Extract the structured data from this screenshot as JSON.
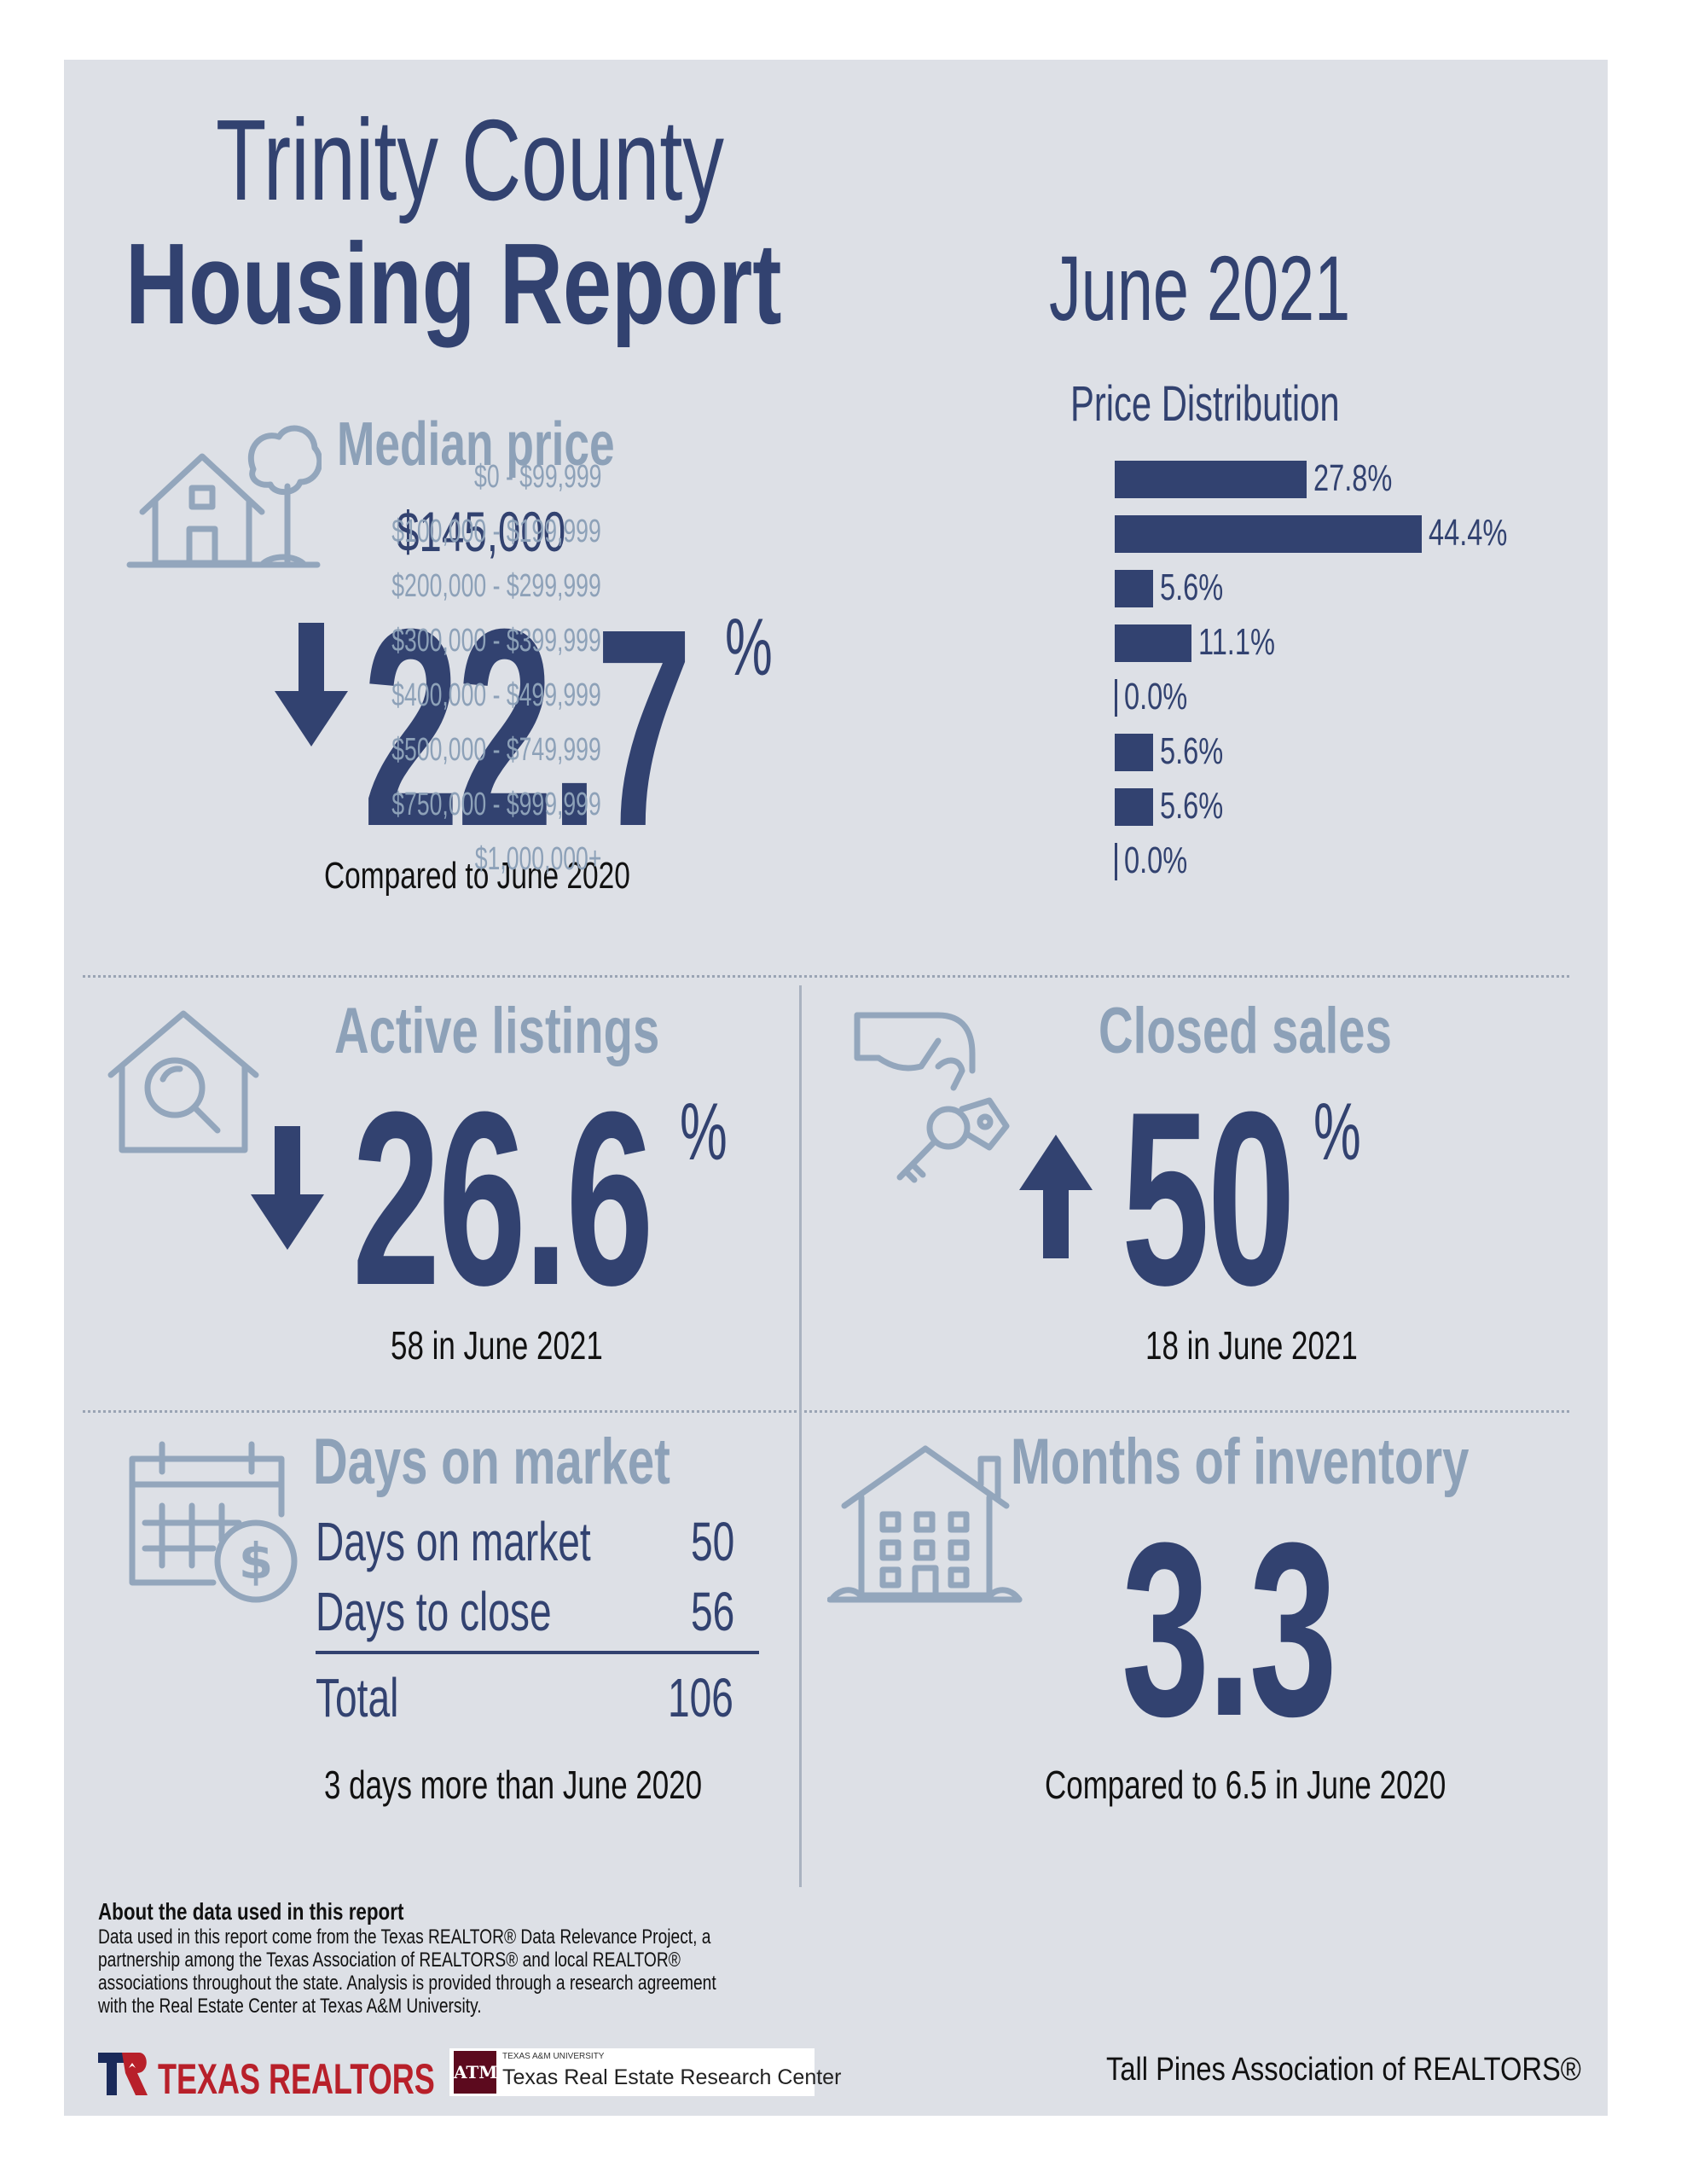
{
  "header": {
    "title_line1": "Trinity County",
    "title_line2": "Housing Report",
    "month": "June 2021"
  },
  "median_price": {
    "label": "Median price",
    "value": "$145,000",
    "direction": "down",
    "change": "22.7",
    "percent_sign": "%",
    "comparison": "Compared to June 2020",
    "icon": "house-tree-icon"
  },
  "price_distribution": {
    "title": "Price Distribution",
    "rows": [
      {
        "label": "$0 - $99,999",
        "pct": 27.8,
        "text": "27.8%"
      },
      {
        "label": "$100,000 - $199,999",
        "pct": 44.4,
        "text": "44.4%"
      },
      {
        "label": "$200,000 - $299,999",
        "pct": 5.6,
        "text": "5.6%"
      },
      {
        "label": "$300,000 - $399,999",
        "pct": 11.1,
        "text": "11.1%"
      },
      {
        "label": "$400,000 - $499,999",
        "pct": 0.0,
        "text": "0.0%"
      },
      {
        "label": "$500,000 - $749,999",
        "pct": 5.6,
        "text": "5.6%"
      },
      {
        "label": "$750,000 - $999,999",
        "pct": 5.6,
        "text": "5.6%"
      },
      {
        "label": "$1,000,000+",
        "pct": 0.0,
        "text": "0.0%"
      }
    ]
  },
  "chart_data": {
    "type": "bar",
    "title": "Price Distribution",
    "categories": [
      "$0 - $99,999",
      "$100,000 - $199,999",
      "$200,000 - $299,999",
      "$300,000 - $399,999",
      "$400,000 - $499,999",
      "$500,000 - $749,999",
      "$750,000 - $999,999",
      "$1,000,000+"
    ],
    "values": [
      27.8,
      44.4,
      5.6,
      11.1,
      0.0,
      5.6,
      5.6,
      0.0
    ],
    "orientation": "horizontal"
  },
  "active_listings": {
    "label": "Active listings",
    "direction": "down",
    "change": "26.6",
    "percent_sign": "%",
    "detail": "58 in June 2021",
    "icon": "house-search-icon"
  },
  "closed_sales": {
    "label": "Closed sales",
    "direction": "up",
    "change": "50",
    "percent_sign": "%",
    "detail": "18 in June 2021",
    "icon": "hand-keys-icon"
  },
  "days_on_market": {
    "label": "Days on market",
    "rows": [
      {
        "label": "Days on market",
        "value": "50"
      },
      {
        "label": "Days to close",
        "value": "56"
      }
    ],
    "total_label": "Total",
    "total_value": "106",
    "comparison": "3 days more than June 2020",
    "icon": "calendar-dollar-icon"
  },
  "months_of_inventory": {
    "label": "Months of inventory",
    "value": "3.3",
    "comparison": "Compared to 6.5 in June 2020",
    "icon": "apartment-building-icon"
  },
  "footer": {
    "about_title": "About the data used in this report",
    "about_lines": [
      "Data used in this report come from the Texas REALTOR® Data Relevance Project, a",
      "partnership among the Texas Association of REALTORS® and local REALTOR®",
      "associations throughout the state. Analysis is provided through a research agreement",
      "with the Real Estate Center at Texas A&M University."
    ],
    "texas_realtors_logo": "TEXAS REALTORS",
    "tamu_small": "TEXAS A&M UNIVERSITY",
    "tamu_name": "Texas Real Estate Research Center",
    "association": "Tall Pines Association of REALTORS®"
  },
  "colors": {
    "panel_bg": "#dde0e6",
    "navy": "#324270",
    "muted": "#8da1b8",
    "icon": "#93a6bc",
    "texas_red": "#b8202a",
    "tamu_maroon": "#5c0a1e"
  }
}
